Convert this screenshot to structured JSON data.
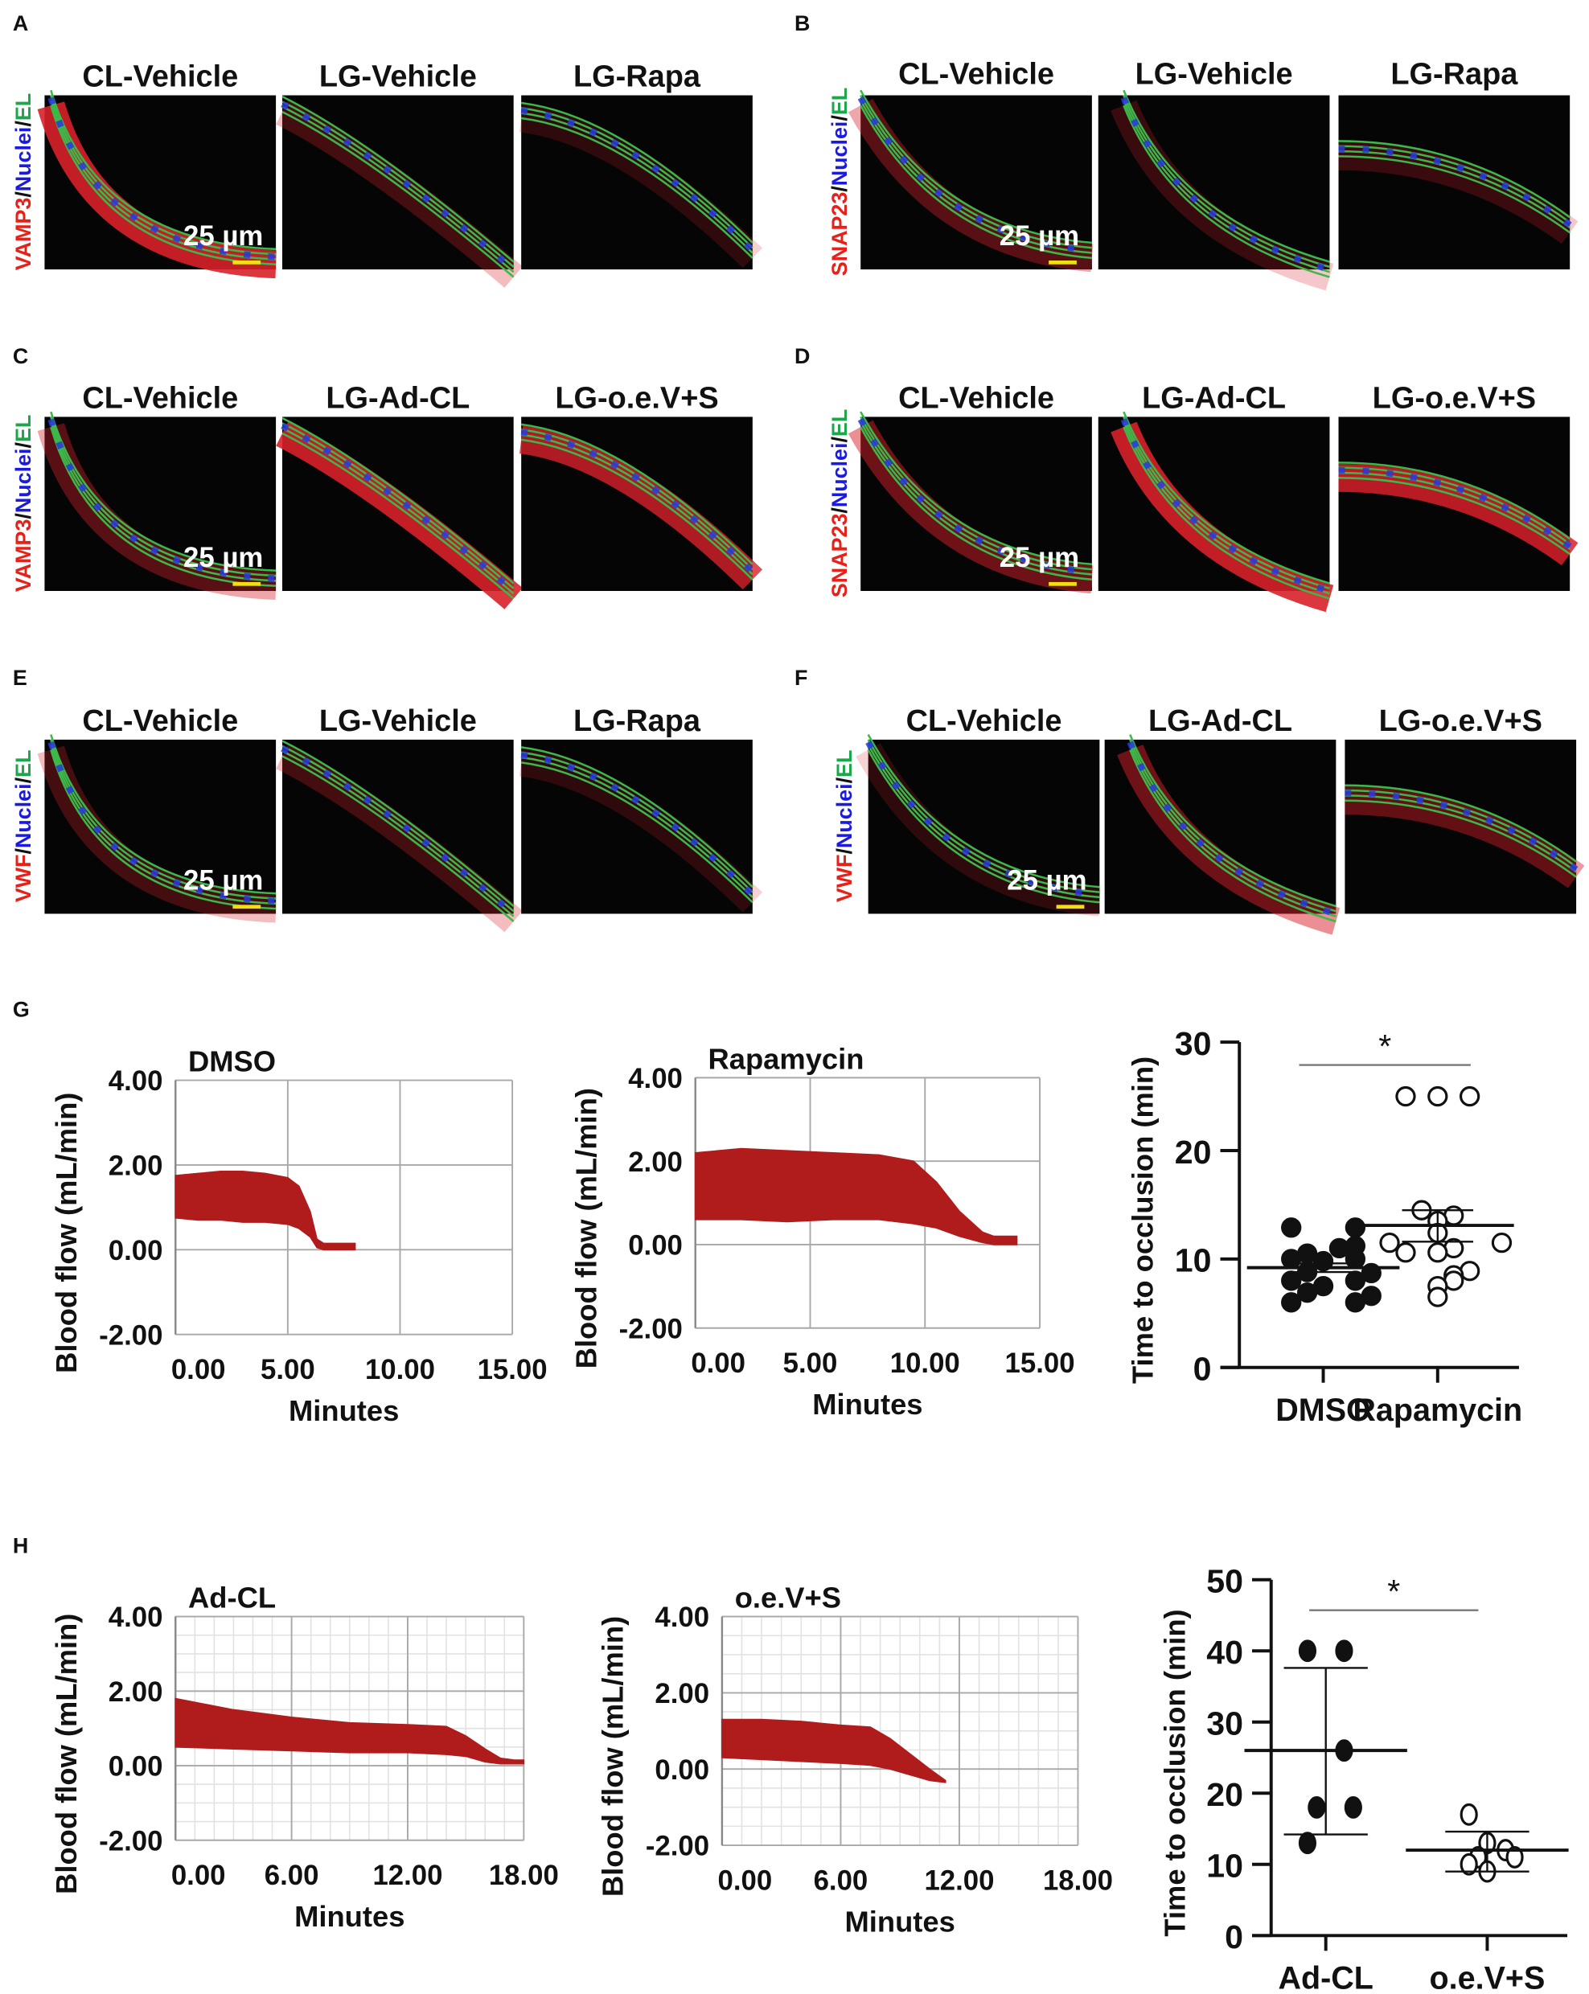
{
  "micrograph_panels": [
    {
      "letter": "A",
      "stain": [
        "VAMP3",
        "Nuclei",
        "EL"
      ],
      "columns": [
        "CL-Vehicle",
        "LG-Vehicle",
        "LG-Rapa"
      ],
      "scale_bar": "25 µm"
    },
    {
      "letter": "B",
      "stain": [
        "SNAP23",
        "Nuclei",
        "EL"
      ],
      "columns": [
        "CL-Vehicle",
        "LG-Vehicle",
        "LG-Rapa"
      ],
      "scale_bar": "25 µm"
    },
    {
      "letter": "C",
      "stain": [
        "VAMP3",
        "Nuclei",
        "EL"
      ],
      "columns": [
        "CL-Vehicle",
        "LG-Ad-CL",
        "LG-o.e.V+S"
      ],
      "scale_bar": "25 µm"
    },
    {
      "letter": "D",
      "stain": [
        "SNAP23",
        "Nuclei",
        "EL"
      ],
      "columns": [
        "CL-Vehicle",
        "LG-Ad-CL",
        "LG-o.e.V+S"
      ],
      "scale_bar": "25 µm"
    },
    {
      "letter": "E",
      "stain": [
        "VWF",
        "Nuclei",
        "EL"
      ],
      "columns": [
        "CL-Vehicle",
        "LG-Vehicle",
        "LG-Rapa"
      ],
      "scale_bar": "25 µm"
    },
    {
      "letter": "F",
      "stain": [
        "VWF",
        "Nuclei",
        "EL"
      ],
      "columns": [
        "CL-Vehicle",
        "LG-Ad-CL",
        "LG-o.e.V+S"
      ],
      "scale_bar": "25 µm"
    }
  ],
  "stain_colors": {
    "marker": "#e8201a",
    "nuclei": "#1a1ae0",
    "el": "#1aa84a",
    "separator": "#111111"
  },
  "row_labels": {
    "G": "G",
    "H": "H"
  },
  "chart_data": [
    {
      "type": "area",
      "panel": "G",
      "title": "DMSO",
      "xlabel": "Minutes",
      "ylabel": "Blood flow (mL/min)",
      "xlim": [
        0,
        15
      ],
      "ylim": [
        -2,
        4
      ],
      "xticks": [
        "0.00",
        "5.00",
        "10.00",
        "15.00"
      ],
      "xtick_values": [
        0,
        5,
        10,
        15
      ],
      "yticks": [
        "4.00",
        "2.00",
        "0.00",
        "-2.00"
      ],
      "ytick_values": [
        4,
        2,
        0,
        -2
      ],
      "color": "#b01c1c",
      "envelope": {
        "t": [
          0,
          1,
          2,
          3,
          4,
          5,
          5.5,
          6,
          6.3,
          6.6,
          8
        ],
        "upper": [
          1.75,
          1.8,
          1.85,
          1.85,
          1.8,
          1.7,
          1.5,
          0.9,
          0.25,
          0.15,
          0.15
        ],
        "lower": [
          0.75,
          0.7,
          0.7,
          0.65,
          0.65,
          0.6,
          0.5,
          0.3,
          0.05,
          0.0,
          0.0
        ]
      }
    },
    {
      "type": "area",
      "panel": "G",
      "title": "Rapamycin",
      "xlabel": "Minutes",
      "ylabel": "Blood flow (mL/min)",
      "xlim": [
        0,
        15
      ],
      "ylim": [
        -2,
        4
      ],
      "xticks": [
        "0.00",
        "5.00",
        "10.00",
        "15.00"
      ],
      "xtick_values": [
        0,
        5,
        10,
        15
      ],
      "yticks": [
        "4.00",
        "2.00",
        "0.00",
        "-2.00"
      ],
      "ytick_values": [
        4,
        2,
        0,
        -2
      ],
      "color": "#b01c1c",
      "envelope": {
        "t": [
          0,
          2,
          4,
          6,
          8,
          9.5,
          10.5,
          11.5,
          12.5,
          13,
          14
        ],
        "upper": [
          2.2,
          2.3,
          2.25,
          2.2,
          2.15,
          2.0,
          1.5,
          0.8,
          0.3,
          0.2,
          0.2
        ],
        "lower": [
          0.6,
          0.6,
          0.55,
          0.6,
          0.6,
          0.5,
          0.4,
          0.2,
          0.05,
          0.0,
          0.0
        ]
      }
    },
    {
      "type": "scatter",
      "panel": "G",
      "ylabel": "Time to occlusion (min)",
      "ylim": [
        0,
        30
      ],
      "yticks": [
        "0",
        "10",
        "20",
        "30"
      ],
      "ytick_values": [
        0,
        10,
        20,
        30
      ],
      "categories": [
        "DMSO",
        "Rapamycin"
      ],
      "significance": "*",
      "series": [
        {
          "name": "DMSO",
          "filled": true,
          "values": [
            12.9,
            12.9,
            11.2,
            11,
            10.5,
            10,
            10,
            9.8,
            8.8,
            8.7,
            8,
            8,
            7.5,
            6.9,
            6.6,
            6,
            6
          ],
          "mean": 9.2,
          "err_high": 9.6,
          "err_low": 8.8
        },
        {
          "name": "Rapamycin",
          "filled": false,
          "values": [
            25,
            25,
            25,
            14.5,
            14,
            13.5,
            12.4,
            11.5,
            11.5,
            11,
            10.6,
            10.6,
            8.9,
            8.5,
            8,
            7.5,
            6.5
          ],
          "mean": 13.1,
          "err_high": 14.5,
          "err_low": 11.6
        }
      ]
    },
    {
      "type": "area",
      "panel": "H",
      "title": "Ad-CL",
      "xlabel": "Minutes",
      "ylabel": "Blood flow (mL/min)",
      "xlim": [
        0,
        18
      ],
      "ylim": [
        -2,
        4
      ],
      "xticks": [
        "0.00",
        "6.00",
        "12.00",
        "18.00"
      ],
      "xtick_values": [
        0,
        6,
        12,
        18
      ],
      "yticks": [
        "4.00",
        "2.00",
        "0.00",
        "-2.00"
      ],
      "ytick_values": [
        4,
        2,
        0,
        -2
      ],
      "color": "#b01c1c",
      "envelope": {
        "t": [
          0,
          3,
          6,
          9,
          12,
          14,
          15,
          16,
          16.8,
          17.5,
          18
        ],
        "upper": [
          1.8,
          1.5,
          1.3,
          1.15,
          1.1,
          1.05,
          0.8,
          0.45,
          0.2,
          0.15,
          0.15
        ],
        "lower": [
          0.5,
          0.45,
          0.4,
          0.35,
          0.35,
          0.3,
          0.25,
          0.1,
          0.05,
          0.05,
          0.05
        ]
      }
    },
    {
      "type": "area",
      "panel": "H",
      "title": "o.e.V+S",
      "xlabel": "Minutes",
      "ylabel": "Blood flow (mL/min)",
      "xlim": [
        0,
        18
      ],
      "ylim": [
        -2,
        4
      ],
      "xticks": [
        "0.00",
        "6.00",
        "12.00",
        "18.00"
      ],
      "xtick_values": [
        0,
        6,
        12,
        18
      ],
      "yticks": [
        "4.00",
        "2.00",
        "0.00",
        "-2.00"
      ],
      "ytick_values": [
        4,
        2,
        0,
        -2
      ],
      "color": "#b01c1c",
      "envelope": {
        "t": [
          0,
          2,
          4,
          6,
          7.5,
          8.5,
          9.5,
          10.5,
          11.3
        ],
        "upper": [
          1.3,
          1.3,
          1.25,
          1.15,
          1.1,
          0.8,
          0.4,
          0.0,
          -0.3
        ],
        "lower": [
          0.3,
          0.25,
          0.2,
          0.15,
          0.1,
          0.0,
          -0.15,
          -0.3,
          -0.35
        ]
      }
    },
    {
      "type": "scatter",
      "panel": "H",
      "ylabel": "Time to occlusion (min)",
      "ylim": [
        0,
        50
      ],
      "yticks": [
        "0",
        "10",
        "20",
        "30",
        "40",
        "50"
      ],
      "ytick_values": [
        0,
        10,
        20,
        30,
        40,
        50
      ],
      "categories": [
        "Ad-CL",
        "o.e.V+S"
      ],
      "significance": "*",
      "series": [
        {
          "name": "Ad-CL",
          "filled": true,
          "values": [
            40,
            40,
            26,
            18,
            18,
            13
          ],
          "mean": 26,
          "err_high": 37.6,
          "err_low": 14.2
        },
        {
          "name": "o.e.V+S",
          "filled": false,
          "values": [
            17,
            13,
            12,
            11,
            11,
            10,
            9
          ],
          "mean": 12,
          "err_high": 14.6,
          "err_low": 9
        }
      ]
    }
  ]
}
